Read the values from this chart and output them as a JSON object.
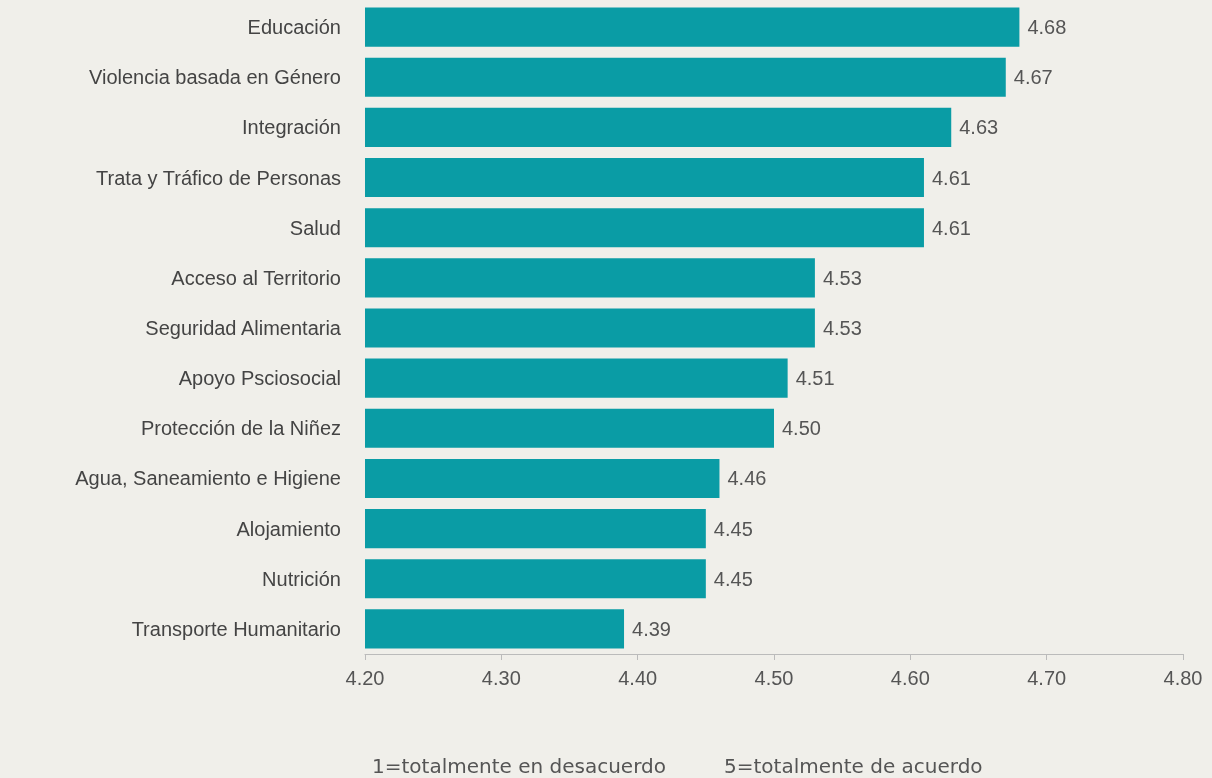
{
  "chart_data": {
    "type": "bar",
    "orientation": "horizontal",
    "categories": [
      "Educación",
      "Violencia basada en Género",
      "Integración",
      "Trata y Tráfico de Personas",
      "Salud",
      "Acceso al Territorio",
      "Seguridad Alimentaria",
      "Apoyo Psciosocial",
      "Protección de la Niñez",
      "Agua, Saneamiento e Higiene",
      "Alojamiento",
      "Nutrición",
      "Transporte Humanitario"
    ],
    "values": [
      4.68,
      4.67,
      4.63,
      4.61,
      4.61,
      4.53,
      4.53,
      4.51,
      4.5,
      4.46,
      4.45,
      4.45,
      4.39
    ],
    "value_labels": [
      "4.68",
      "4.67",
      "4.63",
      "4.61",
      "4.61",
      "4.53",
      "4.53",
      "4.51",
      "4.50",
      "4.46",
      "4.45",
      "4.45",
      "4.39"
    ],
    "color": "#0a9ca5",
    "xlim": [
      4.2,
      4.8
    ],
    "xticks": [
      {
        "value": 4.2,
        "label": "4.20"
      },
      {
        "value": 4.3,
        "label": "4.30"
      },
      {
        "value": 4.4,
        "label": "4.40"
      },
      {
        "value": 4.5,
        "label": "4.50"
      },
      {
        "value": 4.6,
        "label": "4.60"
      },
      {
        "value": 4.7,
        "label": "4.70"
      },
      {
        "value": 4.8,
        "label": "4.80"
      }
    ],
    "grid": false,
    "annotations": [
      "1=totalmente en desacuerdo",
      "5=totalmente de acuerdo"
    ]
  }
}
